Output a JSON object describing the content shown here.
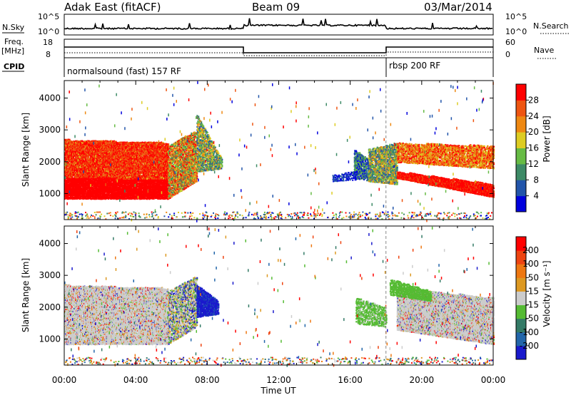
{
  "header": {
    "station": "Adak East (fitACF)",
    "beam": "Beam 09",
    "date": "03/Mar/2014"
  },
  "strips": {
    "nsky_label": "N.Sky",
    "nsearch_label": "N.Search",
    "nsky_ticks": [
      "10^5",
      "10^0"
    ],
    "nsearch_ticks": [
      "10^5",
      "10^0"
    ],
    "freq_label_line1": "Freq.",
    "freq_label_line2": "[MHz]",
    "freq_ticks": [
      "18",
      "8"
    ],
    "nave_label": "Nave",
    "nave_ticks": [
      "60",
      "0"
    ],
    "cpid_label": "CPID",
    "cpid_segments": [
      {
        "label": "normalsound (fast) 157 RF",
        "start_h": 0,
        "end_h": 18
      },
      {
        "label": "rbsp 200 RF",
        "start_h": 18,
        "end_h": 24
      }
    ]
  },
  "chart_data": [
    {
      "type": "heatmap",
      "panel": "power",
      "ylabel": "Slant Range [km]",
      "xlabel": "Time UT",
      "xlim_hours": [
        0,
        24
      ],
      "ylim": [
        180,
        4550
      ],
      "x_tick_labels": [
        "00:00",
        "04:00",
        "08:00",
        "12:00",
        "16:00",
        "20:00",
        "00:00"
      ],
      "y_ticks": [
        1000,
        2000,
        3000,
        4000
      ],
      "colorbar": {
        "label": "Power [dB]",
        "ticks": [
          4,
          8,
          12,
          16,
          20,
          24,
          28
        ],
        "colors": [
          "#0000dd",
          "#2255aa",
          "#3d8a66",
          "#66bb44",
          "#ddcc22",
          "#ee8811",
          "#ee5511",
          "#ff0000"
        ]
      }
    },
    {
      "type": "heatmap",
      "panel": "velocity",
      "ylabel": "Slant Range [km]",
      "xlabel": "Time UT",
      "xlim_hours": [
        0,
        24
      ],
      "ylim": [
        180,
        4550
      ],
      "x_tick_labels": [
        "00:00",
        "04:00",
        "08:00",
        "12:00",
        "16:00",
        "20:00",
        "00:00"
      ],
      "y_ticks": [
        1000,
        2000,
        3000,
        4000
      ],
      "colorbar": {
        "label": "Velocity [m s⁻¹]",
        "ticks": [
          200,
          100,
          50,
          15,
          -15,
          -50,
          -100,
          -200
        ],
        "colors": [
          "#1a1acc",
          "#2266aa",
          "#337a66",
          "#55bb33",
          "#cccccc",
          "#dd9922",
          "#ee7711",
          "#ee4411",
          "#ff0000"
        ]
      }
    }
  ],
  "x_axis_title": "Time UT",
  "vertical_marker_hour": 18
}
